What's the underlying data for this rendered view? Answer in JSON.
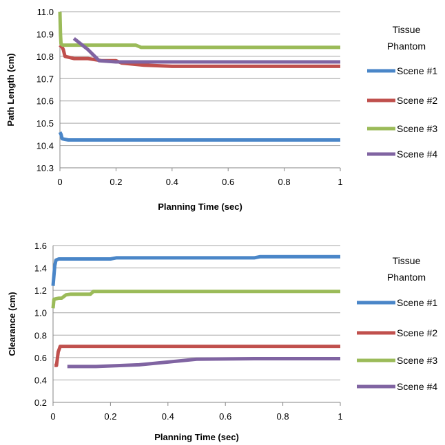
{
  "chart_data": [
    {
      "type": "line",
      "title": "",
      "xlabel": "Planning Time (sec)",
      "ylabel": "Path Length (cm)",
      "xlim": [
        0,
        1
      ],
      "ylim": [
        10.3,
        11.0
      ],
      "xticks": [
        "0",
        "0.2",
        "0.4",
        "0.6",
        "0.8",
        "1"
      ],
      "yticks": [
        "10.3",
        "10.4",
        "10.5",
        "10.6",
        "10.7",
        "10.8",
        "10.9",
        "11.0"
      ],
      "grid": "horizontal",
      "legend": {
        "title_lines": [
          "Tissue",
          "Phantom"
        ],
        "placement": "right"
      },
      "series": [
        {
          "name": "Scene #1",
          "color": "#4a86c8",
          "points": [
            [
              0,
              10.46
            ],
            [
              0.004,
              10.45
            ],
            [
              0.008,
              10.43
            ],
            [
              0.03,
              10.425
            ],
            [
              1,
              10.425
            ]
          ]
        },
        {
          "name": "Scene #2",
          "color": "#c0504d",
          "points": [
            [
              0,
              10.85
            ],
            [
              0.008,
              10.84
            ],
            [
              0.012,
              10.83
            ],
            [
              0.018,
              10.8
            ],
            [
              0.05,
              10.79
            ],
            [
              0.1,
              10.79
            ],
            [
              0.15,
              10.78
            ],
            [
              0.2,
              10.78
            ],
            [
              0.22,
              10.77
            ],
            [
              0.3,
              10.76
            ],
            [
              0.4,
              10.755
            ],
            [
              1,
              10.755
            ]
          ]
        },
        {
          "name": "Scene #3",
          "color": "#9bbb59",
          "points": [
            [
              0,
              11.0
            ],
            [
              0.002,
              10.9
            ],
            [
              0.004,
              10.855
            ],
            [
              0.01,
              10.85
            ],
            [
              0.27,
              10.85
            ],
            [
              0.29,
              10.84
            ],
            [
              1,
              10.84
            ]
          ]
        },
        {
          "name": "Scene #4",
          "color": "#8064a2",
          "points": [
            [
              0.05,
              10.88
            ],
            [
              0.1,
              10.83
            ],
            [
              0.14,
              10.78
            ],
            [
              0.2,
              10.775
            ],
            [
              1,
              10.775
            ]
          ]
        }
      ]
    },
    {
      "type": "line",
      "title": "",
      "xlabel": "Planning Time (sec)",
      "ylabel": "Clearance (cm)",
      "xlim": [
        0,
        1
      ],
      "ylim": [
        0.2,
        1.6
      ],
      "xticks": [
        "0",
        "0.2",
        "0.4",
        "0.6",
        "0.8",
        "1"
      ],
      "yticks": [
        "0.2",
        "0.4",
        "0.6",
        "0.8",
        "1.0",
        "1.2",
        "1.4",
        "1.6"
      ],
      "grid": "horizontal",
      "legend": {
        "title_lines": [
          "Tissue",
          "Phantom"
        ],
        "placement": "right"
      },
      "series": [
        {
          "name": "Scene #1",
          "color": "#4a86c8",
          "points": [
            [
              0,
              1.24
            ],
            [
              0.006,
              1.42
            ],
            [
              0.01,
              1.47
            ],
            [
              0.02,
              1.48
            ],
            [
              0.2,
              1.48
            ],
            [
              0.22,
              1.49
            ],
            [
              0.7,
              1.49
            ],
            [
              0.72,
              1.5
            ],
            [
              1,
              1.5
            ]
          ]
        },
        {
          "name": "Scene #2",
          "color": "#c0504d",
          "points": [
            [
              0.005,
              0.53
            ],
            [
              0.012,
              0.53
            ],
            [
              0.018,
              0.65
            ],
            [
              0.025,
              0.7
            ],
            [
              1,
              0.7
            ]
          ]
        },
        {
          "name": "Scene #3",
          "color": "#9bbb59",
          "points": [
            [
              0,
              1.04
            ],
            [
              0.003,
              1.12
            ],
            [
              0.02,
              1.13
            ],
            [
              0.03,
              1.13
            ],
            [
              0.045,
              1.16
            ],
            [
              0.06,
              1.165
            ],
            [
              0.13,
              1.165
            ],
            [
              0.14,
              1.19
            ],
            [
              1,
              1.19
            ]
          ]
        },
        {
          "name": "Scene #4",
          "color": "#8064a2",
          "points": [
            [
              0.05,
              0.52
            ],
            [
              0.15,
              0.52
            ],
            [
              0.3,
              0.535
            ],
            [
              0.4,
              0.56
            ],
            [
              0.5,
              0.585
            ],
            [
              0.7,
              0.59
            ],
            [
              1,
              0.59
            ]
          ]
        }
      ]
    }
  ]
}
